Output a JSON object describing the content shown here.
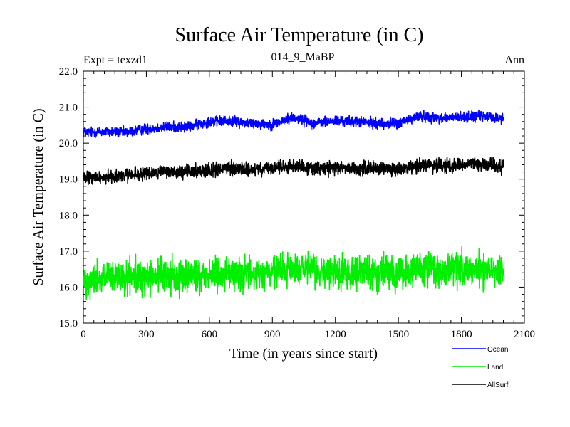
{
  "chart_data": {
    "type": "line",
    "title": "Surface Air Temperature (in C)",
    "left_label": "Expt = texzd1",
    "center_label": "014_9_MaBP",
    "right_label": "Ann",
    "xlabel": "Time (in years since start)",
    "ylabel": "Surface Air Temperature (in C)",
    "xlim": [
      0,
      2100
    ],
    "ylim": [
      15.0,
      22.0
    ],
    "xticks": [
      0,
      300,
      600,
      900,
      1200,
      1500,
      1800,
      2100
    ],
    "yticks": [
      "15.0",
      "16.0",
      "17.0",
      "18.0",
      "19.0",
      "20.0",
      "21.0",
      "22.0"
    ],
    "grid": false,
    "legend_position": "bottom-right",
    "series": [
      {
        "name": "Ocean",
        "color": "#0000ff",
        "x": [
          0,
          100,
          200,
          300,
          400,
          500,
          600,
          700,
          800,
          900,
          1000,
          1100,
          1200,
          1300,
          1400,
          1500,
          1600,
          1700,
          1800,
          1900,
          2000
        ],
        "values": [
          20.3,
          20.32,
          20.3,
          20.4,
          20.45,
          20.45,
          20.6,
          20.62,
          20.55,
          20.52,
          20.72,
          20.55,
          20.62,
          20.6,
          20.55,
          20.55,
          20.75,
          20.7,
          20.72,
          20.75,
          20.68
        ]
      },
      {
        "name": "Land",
        "color": "#00ee00",
        "x": [
          0,
          100,
          200,
          300,
          400,
          500,
          600,
          700,
          800,
          900,
          1000,
          1100,
          1200,
          1300,
          1400,
          1500,
          1600,
          1700,
          1800,
          1900,
          2000
        ],
        "values": [
          16.2,
          16.25,
          16.25,
          16.3,
          16.3,
          16.3,
          16.35,
          16.4,
          16.35,
          16.4,
          16.5,
          16.45,
          16.4,
          16.45,
          16.4,
          16.35,
          16.5,
          16.45,
          16.5,
          16.5,
          16.5
        ]
      },
      {
        "name": "AllSurf",
        "color": "#000000",
        "x": [
          0,
          100,
          200,
          300,
          400,
          500,
          600,
          700,
          800,
          900,
          1000,
          1100,
          1200,
          1300,
          1400,
          1500,
          1600,
          1700,
          1800,
          1900,
          2000
        ],
        "values": [
          19.0,
          19.05,
          19.1,
          19.15,
          19.2,
          19.2,
          19.25,
          19.3,
          19.25,
          19.3,
          19.38,
          19.3,
          19.32,
          19.3,
          19.3,
          19.25,
          19.4,
          19.38,
          19.4,
          19.42,
          19.35
        ]
      }
    ]
  }
}
